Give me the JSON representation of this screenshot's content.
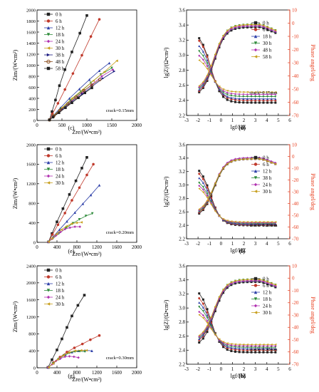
{
  "figure": {
    "series_colors": [
      "#222222",
      "#c0392b",
      "#2c3ea8",
      "#2e8b3a",
      "#b030b0",
      "#c8a020",
      "#1a1a80",
      "#8a4a1a"
    ],
    "bode_mag_color": "#000000",
    "bode_phase_color": "#e84020",
    "panels": {
      "c": {
        "label": "(c)",
        "note": "crack=0.15mm"
      },
      "e": {
        "label": "(e)",
        "note": "crack=0.20mm"
      },
      "g": {
        "label": "(g)",
        "note": "crack=0.30mm"
      },
      "d": {
        "label": "(d)",
        "note": "crack=0.15mm"
      },
      "f": {
        "label": "(f)",
        "note": "crack=0.20mm"
      },
      "h": {
        "label": "(h)",
        "note": "crack=0.30mm"
      }
    }
  },
  "chart_data": [
    {
      "id": "c",
      "type": "scatter",
      "xlabel": "Zre/(W•cm²)",
      "ylabel": "Zim/(W•cm²)",
      "xlim": [
        0,
        2000
      ],
      "ylim": [
        0,
        2000
      ],
      "xticks": [
        "0",
        "500",
        "1000",
        "1500",
        "2000"
      ],
      "yticks": [
        "0",
        "200",
        "400",
        "600",
        "800",
        "1000",
        "1200",
        "1400",
        "1600",
        "1800",
        "2000"
      ],
      "series": [
        {
          "name": "0 h",
          "x": [
            250,
            300,
            370,
            450,
            560,
            700,
            860,
            1000
          ],
          "y": [
            10,
            160,
            370,
            630,
            920,
            1240,
            1580,
            1900
          ]
        },
        {
          "name": "6 h",
          "x": [
            250,
            310,
            420,
            560,
            720,
            900,
            1080,
            1250
          ],
          "y": [
            10,
            120,
            310,
            560,
            850,
            1180,
            1520,
            1830
          ]
        },
        {
          "name": "12 h",
          "x": [
            250,
            330,
            470,
            650,
            850,
            1050,
            1250,
            1450
          ],
          "y": [
            10,
            90,
            230,
            400,
            570,
            740,
            900,
            1040
          ]
        },
        {
          "name": "18 h",
          "x": [
            250,
            330,
            480,
            670,
            880,
            1080,
            1280,
            1500
          ],
          "y": [
            10,
            85,
            210,
            360,
            520,
            680,
            830,
            950
          ]
        },
        {
          "name": "24 h",
          "x": [
            250,
            330,
            490,
            690,
            900,
            1100,
            1300,
            1520
          ],
          "y": [
            10,
            80,
            200,
            350,
            500,
            650,
            800,
            920
          ]
        },
        {
          "name": "30 h",
          "x": [
            250,
            340,
            500,
            700,
            920,
            1130,
            1350,
            1600
          ],
          "y": [
            10,
            90,
            230,
            400,
            560,
            720,
            880,
            1080
          ]
        },
        {
          "name": "38 h",
          "x": [
            250,
            340,
            500,
            700,
            910,
            1110,
            1320,
            1550
          ],
          "y": [
            10,
            80,
            200,
            340,
            480,
            620,
            760,
            890
          ]
        },
        {
          "name": "48 h",
          "x": [
            250,
            330,
            460,
            620,
            780,
            940,
            1100,
            1260
          ],
          "y": [
            10,
            75,
            180,
            300,
            420,
            540,
            640,
            740
          ]
        },
        {
          "name": "58 h",
          "x": [
            250,
            320,
            440,
            570,
            700,
            830,
            960,
            1100
          ],
          "y": [
            10,
            60,
            140,
            230,
            320,
            410,
            500,
            590
          ]
        }
      ]
    },
    {
      "id": "e",
      "type": "scatter",
      "xlabel": "Zre/(W•cm²)",
      "ylabel": "Zim/(W•cm²)",
      "xlim": [
        0,
        2000
      ],
      "ylim": [
        0,
        2000
      ],
      "xticks": [
        "0",
        "400",
        "800",
        "1200",
        "1600",
        "2000"
      ],
      "yticks": [
        "0",
        "400",
        "800",
        "1200",
        "1600",
        "2000"
      ],
      "series": [
        {
          "name": "0 h",
          "x": [
            230,
            300,
            400,
            520,
            650,
            780,
            900,
            1000
          ],
          "y": [
            10,
            180,
            420,
            690,
            980,
            1260,
            1520,
            1740
          ]
        },
        {
          "name": "6 h",
          "x": [
            230,
            310,
            420,
            560,
            700,
            850,
            1000,
            1130
          ],
          "y": [
            10,
            160,
            360,
            600,
            860,
            1120,
            1380,
            1600
          ]
        },
        {
          "name": "12 h",
          "x": [
            230,
            320,
            450,
            600,
            760,
            920,
            1080,
            1250
          ],
          "y": [
            10,
            110,
            260,
            430,
            610,
            790,
            970,
            1170
          ]
        },
        {
          "name": "18 h",
          "x": [
            230,
            320,
            440,
            580,
            720,
            850,
            980,
            1110
          ],
          "y": [
            10,
            80,
            180,
            290,
            390,
            470,
            540,
            590
          ]
        },
        {
          "name": "24 h",
          "x": [
            230,
            300,
            380,
            470,
            560,
            660,
            760,
            860
          ],
          "y": [
            10,
            70,
            140,
            210,
            270,
            300,
            320,
            320
          ]
        },
        {
          "name": "30 h",
          "x": [
            230,
            300,
            390,
            490,
            590,
            690,
            790,
            890
          ],
          "y": [
            10,
            80,
            170,
            260,
            330,
            380,
            400,
            410
          ]
        }
      ]
    },
    {
      "id": "g",
      "type": "scatter",
      "xlabel": "Zre/(W•cm²)",
      "ylabel": "Zim/(W•cm²)",
      "xlim": [
        0,
        2000
      ],
      "ylim": [
        0,
        2400
      ],
      "xticks": [
        "0",
        "400",
        "800",
        "1200",
        "1600",
        "2000"
      ],
      "yticks": [
        "0",
        "400",
        "800",
        "1200",
        "1600",
        "2000",
        "2400"
      ],
      "series": [
        {
          "name": "0 h",
          "x": [
            220,
            300,
            400,
            500,
            600,
            700,
            820,
            950
          ],
          "y": [
            10,
            190,
            420,
            680,
            950,
            1220,
            1470,
            1710
          ]
        },
        {
          "name": "6 h",
          "x": [
            230,
            330,
            460,
            600,
            750,
            910,
            1070,
            1250
          ],
          "y": [
            10,
            120,
            250,
            370,
            470,
            560,
            660,
            760
          ]
        },
        {
          "name": "12 h",
          "x": [
            230,
            330,
            450,
            570,
            700,
            830,
            960,
            1100
          ],
          "y": [
            10,
            110,
            220,
            310,
            370,
            400,
            410,
            400
          ]
        },
        {
          "name": "18 h",
          "x": [
            230,
            320,
            430,
            540,
            650,
            760,
            860,
            960
          ],
          "y": [
            10,
            100,
            200,
            290,
            350,
            380,
            390,
            380
          ]
        },
        {
          "name": "24 h",
          "x": [
            220,
            300,
            380,
            470,
            560,
            650,
            740,
            830
          ],
          "y": [
            10,
            80,
            160,
            220,
            260,
            270,
            260,
            240
          ]
        },
        {
          "name": "30 h",
          "x": [
            230,
            320,
            420,
            530,
            640,
            760,
            880,
            990
          ],
          "y": [
            10,
            100,
            200,
            290,
            360,
            400,
            410,
            410
          ]
        }
      ]
    },
    {
      "id": "d",
      "type": "line",
      "xlabel": "lgf/HZ",
      "ylabel": "lg|Z|/(Ω•cm²)",
      "y2label": "Phase angel/deg",
      "xlim": [
        -3,
        6
      ],
      "ylim": [
        2.2,
        3.6
      ],
      "y2lim": [
        -70,
        10
      ],
      "xticks": [
        "-3",
        "-2",
        "-1",
        "0",
        "1",
        "2",
        "3",
        "4",
        "5",
        "6"
      ],
      "yticks": [
        "2.2",
        "2.4",
        "2.6",
        "2.8",
        "3.0",
        "3.2",
        "3.4",
        "3.6"
      ],
      "y2ticks": [
        "-70",
        "-60",
        "-50",
        "-40",
        "-30",
        "-20",
        "-10",
        "0",
        "10"
      ],
      "series": [
        {
          "name": "0 h",
          "mag_lf": 3.32,
          "mag_hf": 2.37,
          "ph_min": -56,
          "ph_max": -3
        },
        {
          "name": "6 h",
          "mag_lf": 3.28,
          "mag_hf": 2.4,
          "ph_min": -55,
          "ph_max": -2
        },
        {
          "name": "18 h",
          "mag_lf": 3.2,
          "mag_hf": 2.42,
          "ph_min": -54,
          "ph_max": -2
        },
        {
          "name": "30 h",
          "mag_lf": 3.12,
          "mag_hf": 2.45,
          "ph_min": -53,
          "ph_max": -1
        },
        {
          "name": "48 h",
          "mag_lf": 3.05,
          "mag_hf": 2.48,
          "ph_min": -52,
          "ph_max": -2
        },
        {
          "name": "58 h",
          "mag_lf": 2.98,
          "mag_hf": 2.51,
          "ph_min": -51,
          "ph_max": -1
        }
      ]
    },
    {
      "id": "f",
      "type": "line",
      "xlabel": "lgf/HZ",
      "ylabel": "lg|Z|/(Ω•cm²)",
      "y2label": "Phase angel/deg",
      "xlim": [
        -3,
        6
      ],
      "ylim": [
        2.2,
        3.6
      ],
      "y2lim": [
        -70,
        10
      ],
      "xticks": [
        "-3",
        "-2",
        "-1",
        "0",
        "1",
        "2",
        "3",
        "4",
        "5",
        "6"
      ],
      "yticks": [
        "2.2",
        "2.4",
        "2.6",
        "2.8",
        "3.0",
        "3.2",
        "3.4",
        "3.6"
      ],
      "y2ticks": [
        "-70",
        "-60",
        "-50",
        "-40",
        "-30",
        "-20",
        "-10",
        "0",
        "10"
      ],
      "series": [
        {
          "name": "0 h",
          "mag_lf": 3.3,
          "mag_hf": 2.4,
          "ph_min": -52,
          "ph_max": -2
        },
        {
          "name": "6 h",
          "mag_lf": 3.25,
          "mag_hf": 2.41,
          "ph_min": -51,
          "ph_max": -2
        },
        {
          "name": "12 h",
          "mag_lf": 3.18,
          "mag_hf": 2.42,
          "ph_min": -50,
          "ph_max": -1
        },
        {
          "name": "38 h",
          "mag_lf": 3.1,
          "mag_hf": 2.43,
          "ph_min": -50,
          "ph_max": -2
        },
        {
          "name": "24 h",
          "mag_lf": 3.05,
          "mag_hf": 2.44,
          "ph_min": -49,
          "ph_max": -1
        },
        {
          "name": "30 h",
          "mag_lf": 3.0,
          "mag_hf": 2.45,
          "ph_min": -48,
          "ph_max": -2
        }
      ]
    },
    {
      "id": "h",
      "type": "line",
      "xlabel": "lgf/HZ",
      "ylabel": "lg|Z|/(Ω•cm²)",
      "y2label": "Phase angel/deg",
      "xlim": [
        -3,
        6
      ],
      "ylim": [
        2.2,
        3.6
      ],
      "y2lim": [
        -70,
        10
      ],
      "xticks": [
        "-3",
        "-2",
        "-1",
        "0",
        "1",
        "2",
        "3",
        "4",
        "5",
        "6"
      ],
      "yticks": [
        "2.2",
        "2.4",
        "2.6",
        "2.8",
        "3.0",
        "3.2",
        "3.4",
        "3.6"
      ],
      "y2ticks": [
        "-70",
        "-60",
        "-50",
        "-40",
        "-30",
        "-20",
        "-10",
        "0",
        "10"
      ],
      "series": [
        {
          "name": "0 h",
          "mag_lf": 3.3,
          "mag_hf": 2.37,
          "ph_min": -56,
          "ph_max": -3
        },
        {
          "name": "6 h",
          "mag_lf": 3.22,
          "mag_hf": 2.4,
          "ph_min": -54,
          "ph_max": -2
        },
        {
          "name": "12 h",
          "mag_lf": 3.15,
          "mag_hf": 2.42,
          "ph_min": -53,
          "ph_max": -2
        },
        {
          "name": "18 h",
          "mag_lf": 3.08,
          "mag_hf": 2.44,
          "ph_min": -52,
          "ph_max": -1
        },
        {
          "name": "24 h",
          "mag_lf": 3.0,
          "mag_hf": 2.46,
          "ph_min": -51,
          "ph_max": -2
        },
        {
          "name": "30 h",
          "mag_lf": 2.95,
          "mag_hf": 2.48,
          "ph_min": -50,
          "ph_max": -1
        }
      ]
    }
  ]
}
